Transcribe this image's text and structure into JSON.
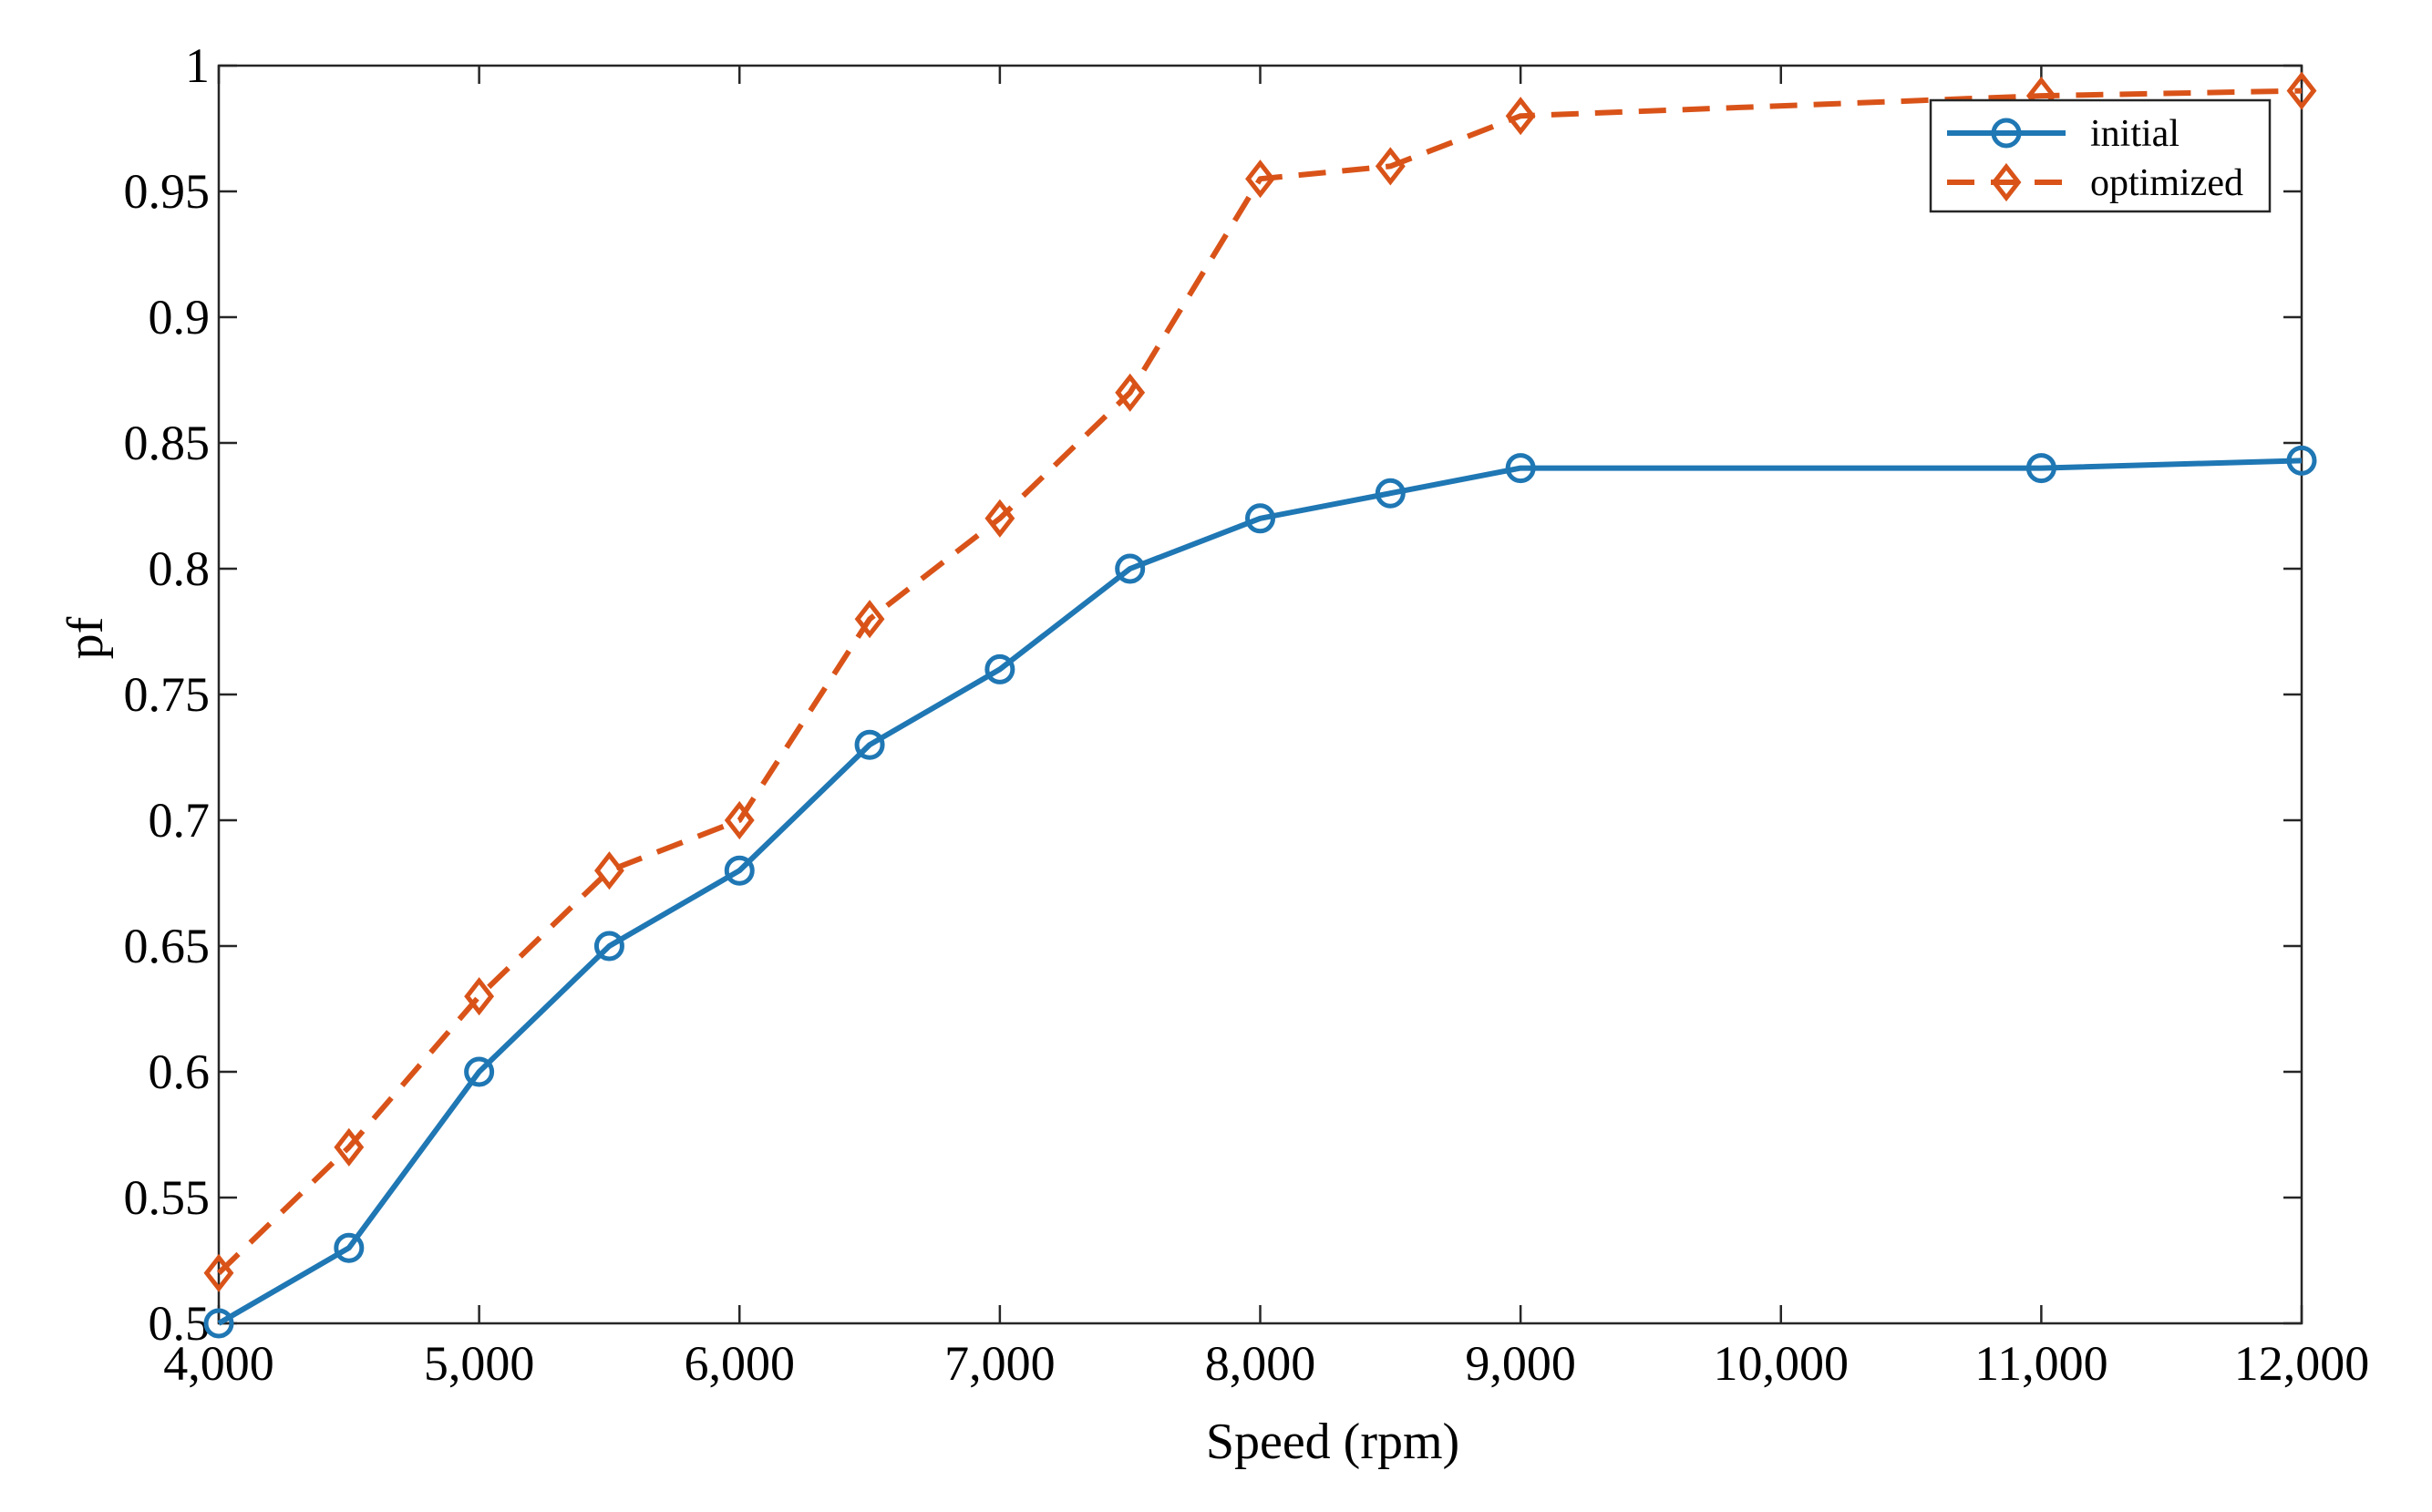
{
  "chart_data": {
    "type": "line",
    "title": "",
    "xlabel": "Speed (rpm)",
    "ylabel": "pf",
    "xlim": [
      4000,
      12000
    ],
    "ylim": [
      0.5,
      1
    ],
    "grid": false,
    "legend_position": "top-right",
    "xticks": [
      {
        "value": 4000,
        "label": "4,000"
      },
      {
        "value": 5000,
        "label": "5,000"
      },
      {
        "value": 6000,
        "label": "6,000"
      },
      {
        "value": 7000,
        "label": "7,000"
      },
      {
        "value": 8000,
        "label": "8,000"
      },
      {
        "value": 9000,
        "label": "9,000"
      },
      {
        "value": 10000,
        "label": "10,000"
      },
      {
        "value": 11000,
        "label": "11,000"
      },
      {
        "value": 12000,
        "label": "12,000"
      }
    ],
    "yticks": [
      {
        "value": 0.5,
        "label": "0.5"
      },
      {
        "value": 0.55,
        "label": "0.55"
      },
      {
        "value": 0.6,
        "label": "0.6"
      },
      {
        "value": 0.65,
        "label": "0.65"
      },
      {
        "value": 0.7,
        "label": "0.7"
      },
      {
        "value": 0.75,
        "label": "0.75"
      },
      {
        "value": 0.8,
        "label": "0.8"
      },
      {
        "value": 0.85,
        "label": "0.85"
      },
      {
        "value": 0.9,
        "label": "0.9"
      },
      {
        "value": 0.95,
        "label": "0.95"
      },
      {
        "value": 1,
        "label": "1"
      }
    ],
    "series": [
      {
        "name": "initial",
        "color": "#1f77b4",
        "line_style": "solid",
        "marker": "circle",
        "x": [
          4000,
          4500,
          5000,
          5500,
          6000,
          6500,
          7000,
          7500,
          8000,
          8500,
          9000,
          11000,
          12000
        ],
        "y": [
          0.5,
          0.53,
          0.6,
          0.65,
          0.68,
          0.73,
          0.76,
          0.8,
          0.82,
          0.83,
          0.84,
          0.84,
          0.843
        ]
      },
      {
        "name": "optimized",
        "color": "#d95319",
        "line_style": "dashed",
        "marker": "diamond",
        "x": [
          4000,
          4500,
          5000,
          5500,
          6000,
          6500,
          7000,
          7500,
          8000,
          8500,
          9000,
          11000,
          12000
        ],
        "y": [
          0.52,
          0.57,
          0.63,
          0.68,
          0.7,
          0.78,
          0.82,
          0.87,
          0.955,
          0.96,
          0.98,
          0.988,
          0.99
        ]
      }
    ]
  }
}
